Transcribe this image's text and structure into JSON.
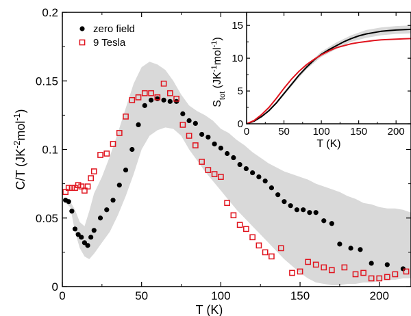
{
  "chart_data": [
    {
      "type": "scatter",
      "role": "main",
      "xlabel": "T (K)",
      "ylabel_parts": [
        {
          "t": "C/T (JK",
          "s": "n"
        },
        {
          "t": "-2",
          "s": "sup"
        },
        {
          "t": "mol",
          "s": "n"
        },
        {
          "t": "-1",
          "s": "sup"
        },
        {
          "t": ")",
          "s": "n"
        }
      ],
      "xlim": [
        0,
        220
      ],
      "ylim": [
        0,
        0.2
      ],
      "xticks": [
        0,
        50,
        100,
        150,
        200
      ],
      "xtick_labels": [
        "0",
        "50",
        "100",
        "150",
        "200"
      ],
      "yticks": [
        0,
        0.05,
        0.1,
        0.15,
        0.2
      ],
      "ytick_labels": [
        "0",
        "0.05",
        "0.1",
        "0.15",
        "0.2"
      ],
      "legend_position": "top-left",
      "series": [
        {
          "name": "zero field",
          "marker": "filled-circle",
          "color": "#000000",
          "points": [
            [
              2,
              0.063
            ],
            [
              4,
              0.062
            ],
            [
              6,
              0.055
            ],
            [
              8,
              0.042
            ],
            [
              10,
              0.038
            ],
            [
              12,
              0.036
            ],
            [
              14,
              0.032
            ],
            [
              16,
              0.03
            ],
            [
              18,
              0.036
            ],
            [
              20,
              0.041
            ],
            [
              24,
              0.05
            ],
            [
              28,
              0.056
            ],
            [
              32,
              0.063
            ],
            [
              36,
              0.074
            ],
            [
              40,
              0.085
            ],
            [
              44,
              0.1
            ],
            [
              48,
              0.118
            ],
            [
              52,
              0.132
            ],
            [
              56,
              0.136
            ],
            [
              60,
              0.137
            ],
            [
              64,
              0.136
            ],
            [
              68,
              0.135
            ],
            [
              72,
              0.135
            ],
            [
              76,
              0.126
            ],
            [
              80,
              0.121
            ],
            [
              84,
              0.119
            ],
            [
              88,
              0.111
            ],
            [
              92,
              0.109
            ],
            [
              96,
              0.104
            ],
            [
              100,
              0.101
            ],
            [
              104,
              0.097
            ],
            [
              108,
              0.094
            ],
            [
              112,
              0.089
            ],
            [
              116,
              0.086
            ],
            [
              120,
              0.083
            ],
            [
              124,
              0.08
            ],
            [
              128,
              0.077
            ],
            [
              132,
              0.072
            ],
            [
              136,
              0.067
            ],
            [
              140,
              0.062
            ],
            [
              144,
              0.059
            ],
            [
              148,
              0.056
            ],
            [
              152,
              0.056
            ],
            [
              156,
              0.054
            ],
            [
              160,
              0.054
            ],
            [
              165,
              0.048
            ],
            [
              170,
              0.046
            ],
            [
              175,
              0.031
            ],
            [
              182,
              0.028
            ],
            [
              188,
              0.027
            ],
            [
              195,
              0.017
            ],
            [
              205,
              0.016
            ],
            [
              215,
              0.013
            ]
          ]
        },
        {
          "name": "9 Tesla",
          "marker": "open-square",
          "color": "#e0141e",
          "points": [
            [
              2,
              0.069
            ],
            [
              4,
              0.072
            ],
            [
              6,
              0.072
            ],
            [
              8,
              0.072
            ],
            [
              10,
              0.074
            ],
            [
              12,
              0.073
            ],
            [
              14,
              0.07
            ],
            [
              16,
              0.073
            ],
            [
              18,
              0.079
            ],
            [
              20,
              0.084
            ],
            [
              24,
              0.096
            ],
            [
              28,
              0.097
            ],
            [
              32,
              0.104
            ],
            [
              36,
              0.112
            ],
            [
              40,
              0.124
            ],
            [
              44,
              0.136
            ],
            [
              48,
              0.138
            ],
            [
              52,
              0.141
            ],
            [
              56,
              0.141
            ],
            [
              60,
              0.138
            ],
            [
              64,
              0.148
            ],
            [
              68,
              0.141
            ],
            [
              72,
              0.137
            ],
            [
              76,
              0.118
            ],
            [
              80,
              0.11
            ],
            [
              84,
              0.103
            ],
            [
              88,
              0.091
            ],
            [
              92,
              0.085
            ],
            [
              96,
              0.082
            ],
            [
              100,
              0.08
            ],
            [
              104,
              0.061
            ],
            [
              108,
              0.052
            ],
            [
              112,
              0.045
            ],
            [
              116,
              0.042
            ],
            [
              120,
              0.036
            ],
            [
              124,
              0.03
            ],
            [
              128,
              0.025
            ],
            [
              132,
              0.022
            ],
            [
              138,
              0.028
            ],
            [
              145,
              0.01
            ],
            [
              150,
              0.011
            ],
            [
              155,
              0.018
            ],
            [
              160,
              0.016
            ],
            [
              165,
              0.014
            ],
            [
              170,
              0.012
            ],
            [
              178,
              0.014
            ],
            [
              185,
              0.009
            ],
            [
              190,
              0.01
            ],
            [
              195,
              0.006
            ],
            [
              200,
              0.006
            ],
            [
              205,
              0.007
            ],
            [
              210,
              0.009
            ],
            [
              217,
              0.011
            ]
          ]
        }
      ],
      "uncertainty_band": {
        "color": "#d9d9d9",
        "x": [
          2,
          5,
          8,
          11,
          14,
          17,
          20,
          25,
          30,
          35,
          40,
          45,
          50,
          55,
          60,
          65,
          70,
          75,
          80,
          85,
          90,
          95,
          100,
          105,
          110,
          115,
          120,
          125,
          130,
          135,
          140,
          145,
          150,
          155,
          160,
          165,
          170,
          175,
          180,
          185,
          190,
          195,
          200,
          205,
          210,
          215,
          220
        ],
        "upper": [
          0.063,
          0.062,
          0.056,
          0.047,
          0.044,
          0.055,
          0.068,
          0.08,
          0.095,
          0.112,
          0.13,
          0.148,
          0.16,
          0.164,
          0.162,
          0.158,
          0.15,
          0.14,
          0.132,
          0.128,
          0.125,
          0.121,
          0.115,
          0.112,
          0.107,
          0.103,
          0.098,
          0.094,
          0.09,
          0.087,
          0.084,
          0.082,
          0.08,
          0.078,
          0.075,
          0.073,
          0.071,
          0.069,
          0.066,
          0.064,
          0.061,
          0.06,
          0.058,
          0.057,
          0.057,
          0.056,
          0.054
        ],
        "lower": [
          0.061,
          0.058,
          0.04,
          0.028,
          0.022,
          0.02,
          0.024,
          0.032,
          0.04,
          0.052,
          0.066,
          0.082,
          0.1,
          0.11,
          0.114,
          0.116,
          0.115,
          0.11,
          0.1,
          0.092,
          0.084,
          0.077,
          0.07,
          0.063,
          0.056,
          0.05,
          0.044,
          0.038,
          0.032,
          0.026,
          0.02,
          0.015,
          0.01,
          0.006,
          0.003,
          0.002,
          0.001,
          0.001,
          0.002,
          0.002,
          0.003,
          0.003,
          0.004,
          0.005,
          0.005,
          0.006,
          0.006
        ]
      }
    },
    {
      "type": "line",
      "role": "inset",
      "xlabel": "T (K)",
      "ylabel_parts": [
        {
          "t": "S",
          "s": "n"
        },
        {
          "t": "tot",
          "s": "sub"
        },
        {
          "t": " (JK",
          "s": "n"
        },
        {
          "t": "-1",
          "s": "sup"
        },
        {
          "t": "mol",
          "s": "n"
        },
        {
          "t": "-1",
          "s": "sup"
        },
        {
          "t": ")",
          "s": "n"
        }
      ],
      "xlim": [
        0,
        220
      ],
      "ylim": [
        0,
        17
      ],
      "xticks": [
        0,
        50,
        100,
        150,
        200
      ],
      "xtick_labels": [
        "0",
        "50",
        "100",
        "150",
        "200"
      ],
      "yticks": [
        0,
        5,
        10,
        15
      ],
      "ytick_labels": [
        "0",
        "5",
        "10",
        "15"
      ],
      "series": [
        {
          "color": "#000000",
          "x": [
            0,
            10,
            20,
            30,
            40,
            50,
            60,
            70,
            80,
            90,
            100,
            110,
            120,
            130,
            140,
            150,
            160,
            170,
            180,
            190,
            200,
            210,
            220
          ],
          "y": [
            0,
            0.4,
            1.1,
            2.0,
            3.2,
            4.6,
            6.0,
            7.4,
            8.6,
            9.7,
            10.6,
            11.3,
            11.9,
            12.5,
            13.0,
            13.4,
            13.7,
            13.9,
            14.1,
            14.2,
            14.3,
            14.35,
            14.4
          ]
        },
        {
          "color": "#e0141e",
          "x": [
            0,
            10,
            20,
            30,
            40,
            50,
            60,
            70,
            80,
            90,
            100,
            110,
            120,
            130,
            140,
            150,
            160,
            170,
            180,
            190,
            200,
            210,
            220
          ],
          "y": [
            0,
            0.5,
            1.4,
            2.5,
            3.9,
            5.4,
            6.8,
            8.0,
            9.0,
            9.8,
            10.5,
            11.1,
            11.6,
            11.9,
            12.2,
            12.4,
            12.55,
            12.7,
            12.8,
            12.85,
            12.9,
            12.95,
            13.0
          ]
        }
      ],
      "uncertainty_band": {
        "color": "#d9d9d9",
        "x": [
          0,
          20,
          40,
          60,
          80,
          100,
          120,
          140,
          160,
          180,
          200,
          220
        ],
        "upper": [
          0,
          1.2,
          3.4,
          6.3,
          8.9,
          11.0,
          12.4,
          13.5,
          14.3,
          14.7,
          14.9,
          15.0
        ],
        "lower": [
          0,
          1.0,
          3.0,
          5.7,
          8.3,
          10.2,
          11.4,
          12.5,
          13.1,
          13.5,
          13.7,
          13.8
        ]
      }
    }
  ]
}
